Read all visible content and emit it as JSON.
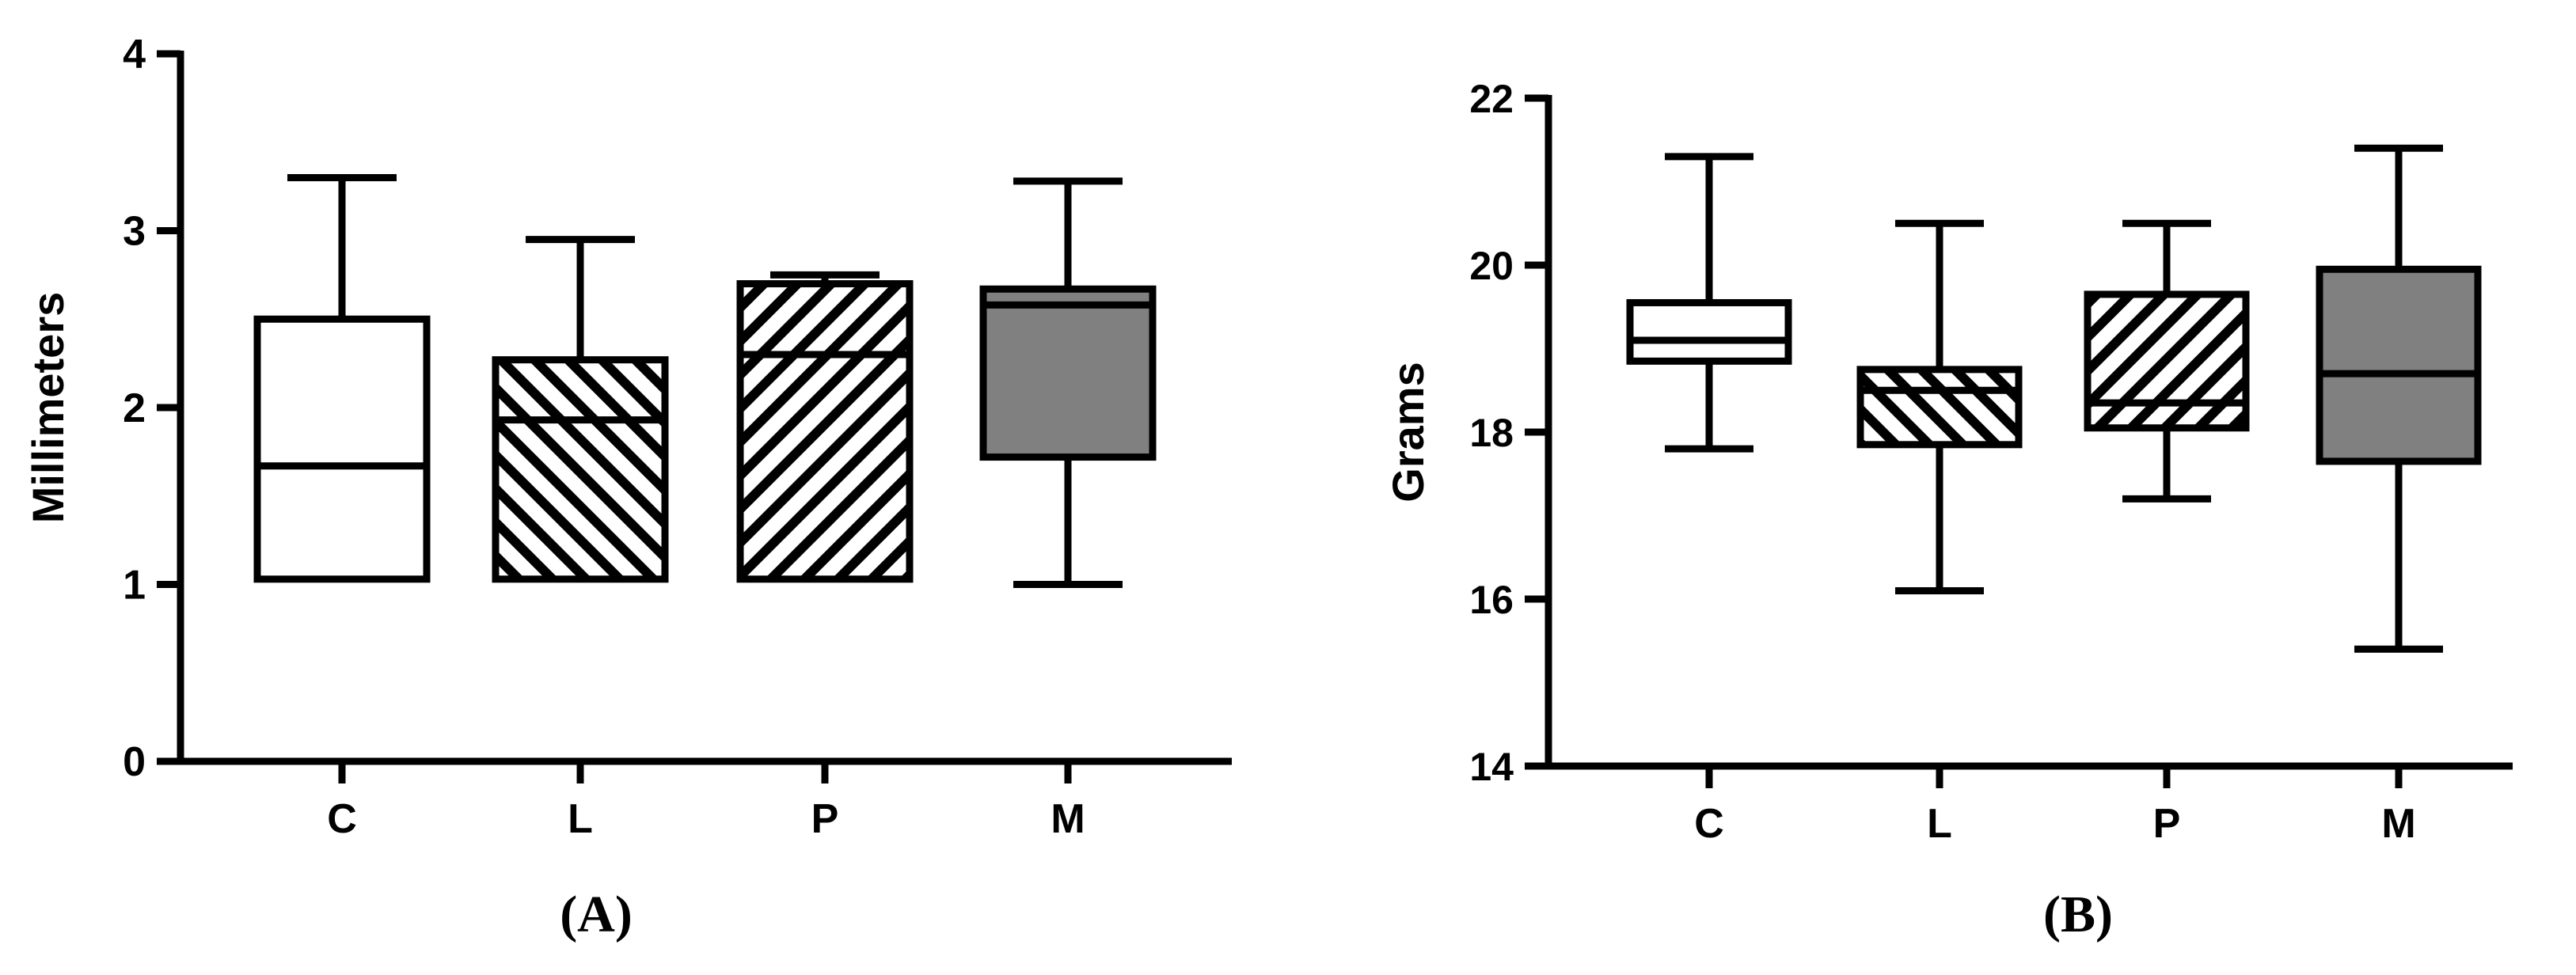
{
  "colors": {
    "axis": "#000000",
    "box_fill_white": "#ffffff",
    "box_fill_gray": "#808080",
    "hatch": "#000000"
  },
  "chart_data": [
    {
      "type": "box",
      "panel_label": "(A)",
      "ylabel": "Millimeters",
      "ylim": [
        0,
        4
      ],
      "yticks": [
        0,
        1,
        2,
        3,
        4
      ],
      "categories": [
        "C",
        "L",
        "P",
        "M"
      ],
      "fill_patterns": [
        "none",
        "hatch-backslash",
        "hatch-slash",
        "solid-gray"
      ],
      "boxes": [
        {
          "category": "C",
          "min": 1.03,
          "q1": 1.03,
          "median": 1.67,
          "q3": 2.5,
          "max": 3.3
        },
        {
          "category": "L",
          "min": 1.03,
          "q1": 1.03,
          "median": 1.93,
          "q3": 2.27,
          "max": 2.95
        },
        {
          "category": "P",
          "min": 1.03,
          "q1": 1.03,
          "median": 2.3,
          "q3": 2.7,
          "max": 2.75
        },
        {
          "category": "M",
          "min": 1.0,
          "q1": 1.72,
          "median": 2.58,
          "q3": 2.67,
          "max": 3.28
        }
      ]
    },
    {
      "type": "box",
      "panel_label": "(B)",
      "ylabel": "Grams",
      "ylim": [
        14,
        22
      ],
      "yticks": [
        14,
        16,
        18,
        20,
        22
      ],
      "categories": [
        "C",
        "L",
        "P",
        "M"
      ],
      "fill_patterns": [
        "none",
        "hatch-backslash",
        "hatch-slash",
        "solid-gray"
      ],
      "boxes": [
        {
          "category": "C",
          "min": 17.8,
          "q1": 18.85,
          "median": 19.1,
          "q3": 19.55,
          "max": 21.3
        },
        {
          "category": "L",
          "min": 16.1,
          "q1": 17.85,
          "median": 18.5,
          "q3": 18.75,
          "max": 20.5
        },
        {
          "category": "P",
          "min": 17.2,
          "q1": 18.05,
          "median": 18.35,
          "q3": 19.65,
          "max": 20.5
        },
        {
          "category": "M",
          "min": 15.4,
          "q1": 17.65,
          "median": 18.7,
          "q3": 19.95,
          "max": 21.4
        }
      ]
    }
  ]
}
